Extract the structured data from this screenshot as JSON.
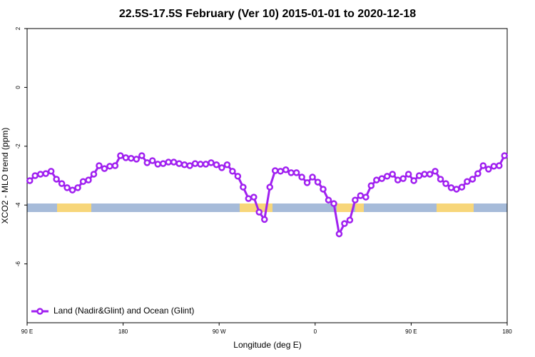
{
  "chart_data": {
    "type": "line",
    "title": "22.5S-17.5S February (Ver 10)   2015-01-01 to 2020-12-18",
    "x_label": "Longitude (deg E)",
    "y_label": "XCO2 - MLO trend (ppm)",
    "xlim": [
      90,
      540
    ],
    "xticks": [
      {
        "value": 90,
        "label": "90 E"
      },
      {
        "value": 180,
        "label": "180"
      },
      {
        "value": 270,
        "label": "90 W"
      },
      {
        "value": 360,
        "label": "0"
      },
      {
        "value": 450,
        "label": "90 E"
      },
      {
        "value": 540,
        "label": "180"
      }
    ],
    "ylim": [
      -8,
      2
    ],
    "yticks": [
      2,
      0,
      -2,
      -4,
      -6
    ],
    "legend": "bottom-left",
    "x": [
      92.5,
      97.5,
      102.5,
      107.5,
      112.5,
      117.5,
      122.5,
      127.5,
      132.5,
      137.5,
      142.5,
      147.5,
      152.5,
      157.5,
      162.5,
      167.5,
      172.5,
      177.5,
      182.5,
      187.5,
      192.5,
      197.5,
      202.5,
      207.5,
      212.5,
      217.5,
      222.5,
      227.5,
      232.5,
      237.5,
      242.5,
      247.5,
      252.5,
      257.5,
      262.5,
      267.5,
      272.5,
      277.5,
      282.5,
      287.5,
      292.5,
      297.5,
      302.5,
      307.5,
      312.5,
      317.5,
      322.5,
      327.5,
      332.5,
      337.5,
      342.5,
      347.5,
      352.5,
      357.5,
      362.5,
      367.5,
      372.5,
      377.5,
      382.5,
      387.5,
      392.5,
      397.5,
      402.5,
      407.5,
      412.5,
      417.5,
      422.5,
      427.5,
      432.5,
      437.5,
      442.5,
      447.5,
      452.5,
      457.5,
      462.5,
      467.5,
      472.5,
      477.5,
      482.5,
      487.5,
      492.5,
      497.5,
      502.5,
      507.5,
      512.5,
      517.5,
      522.5,
      527.5,
      532.5,
      537.5
    ],
    "series": [
      {
        "name": "Land (Nadir&Glint) and Ocean (Glint)",
        "color": "#a020f0",
        "values": [
          -3.17,
          -3.0,
          -2.95,
          -2.93,
          -2.85,
          -3.12,
          -3.27,
          -3.41,
          -3.49,
          -3.41,
          -3.2,
          -3.15,
          -2.95,
          -2.66,
          -2.76,
          -2.68,
          -2.66,
          -2.32,
          -2.39,
          -2.41,
          -2.44,
          -2.32,
          -2.56,
          -2.49,
          -2.61,
          -2.59,
          -2.54,
          -2.54,
          -2.59,
          -2.63,
          -2.66,
          -2.59,
          -2.61,
          -2.61,
          -2.56,
          -2.63,
          -2.73,
          -2.63,
          -2.85,
          -3.02,
          -3.39,
          -3.78,
          -3.73,
          -4.24,
          -4.49,
          -3.39,
          -2.83,
          -2.85,
          -2.8,
          -2.9,
          -2.9,
          -3.05,
          -3.24,
          -3.05,
          -3.22,
          -3.46,
          -3.83,
          -3.95,
          -4.98,
          -4.63,
          -4.51,
          -3.83,
          -3.68,
          -3.73,
          -3.34,
          -3.15,
          -3.1,
          -3.02,
          -2.95,
          -3.15,
          -3.1,
          -2.95,
          -3.17,
          -3.0,
          -2.95,
          -2.95,
          -2.85,
          -3.12,
          -3.27,
          -3.41,
          -3.46,
          -3.39,
          -3.2,
          -3.12,
          -2.93,
          -2.66,
          -2.78,
          -2.68,
          -2.66,
          -2.32
        ]
      }
    ]
  }
}
